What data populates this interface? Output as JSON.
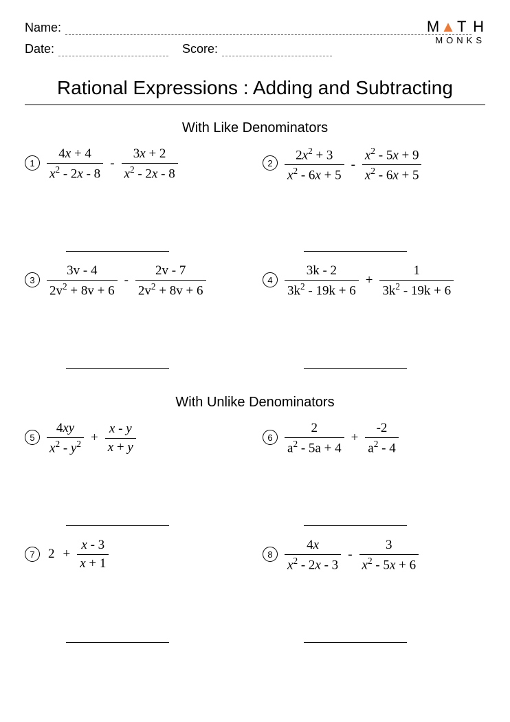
{
  "header": {
    "name_label": "Name:",
    "date_label": "Date:",
    "score_label": "Score:"
  },
  "logo": {
    "line1_a": "M",
    "line1_tri": "▲",
    "line1_b": "T H",
    "line2": "MONKS"
  },
  "title": "Rational Expressions : Adding and Subtracting",
  "section1": "With Like Denominators",
  "section2": "With Unlike Denominators",
  "problems": [
    {
      "n": "1",
      "f1_top": "4<i>x</i> + 4",
      "f1_bot": "<i>x</i><sup>2</sup> - 2<i>x</i> - 8",
      "op": "-",
      "f2_top": "3<i>x</i> + 2",
      "f2_bot": "<i>x</i><sup>2</sup> - 2<i>x</i> - 8"
    },
    {
      "n": "2",
      "f1_top": "2<i>x</i><sup>2</sup> + 3",
      "f1_bot": "<i>x</i><sup>2</sup> - 6<i>x</i> + 5",
      "op": "-",
      "f2_top": "<i>x</i><sup>2</sup> - 5<i>x</i> + 9",
      "f2_bot": "<i>x</i><sup>2</sup> - 6<i>x</i> + 5"
    },
    {
      "n": "3",
      "f1_top": "3v - 4",
      "f1_bot": "2v<sup>2</sup> + 8v + 6",
      "op": "-",
      "f2_top": "2v - 7",
      "f2_bot": "2v<sup>2</sup> + 8v + 6"
    },
    {
      "n": "4",
      "f1_top": "3k - 2",
      "f1_bot": "3k<sup>2</sup> - 19k + 6",
      "op": "+",
      "f2_top": "1",
      "f2_bot": "3k<sup>2</sup> - 19k + 6"
    },
    {
      "n": "5",
      "f1_top": "4<i>xy</i>",
      "f1_bot": "<i>x</i><sup>2</sup> - <i>y</i><sup>2</sup>",
      "op": "+",
      "f2_top": "<i>x</i> - <i>y</i>",
      "f2_bot": "<i>x</i> + <i>y</i>"
    },
    {
      "n": "6",
      "f1_top": "2",
      "f1_bot": "a<sup>2</sup> - 5a + 4",
      "op": "+",
      "f2_top": "-2",
      "f2_bot": "a<sup>2</sup> - 4"
    },
    {
      "n": "7",
      "lead": "2",
      "lead_op": "+",
      "f1_top": "<i>x</i> - 3",
      "f1_bot": "<i>x</i> + 1"
    },
    {
      "n": "8",
      "f1_top": "4<i>x</i>",
      "f1_bot": "<i>x</i><sup>2</sup> - 2<i>x</i> - 3",
      "op": "-",
      "f2_top": "3",
      "f2_bot": "<i>x</i><sup>2</sup> - 5<i>x</i> + 6"
    }
  ],
  "style": {
    "page_bg": "#ffffff",
    "text_color": "#000000",
    "accent_color": "#e97c3a",
    "dash_color": "#666666",
    "body_font": "Arial",
    "math_font": "Times New Roman",
    "title_fontsize": 28,
    "section_fontsize": 20,
    "math_fontsize": 19
  }
}
